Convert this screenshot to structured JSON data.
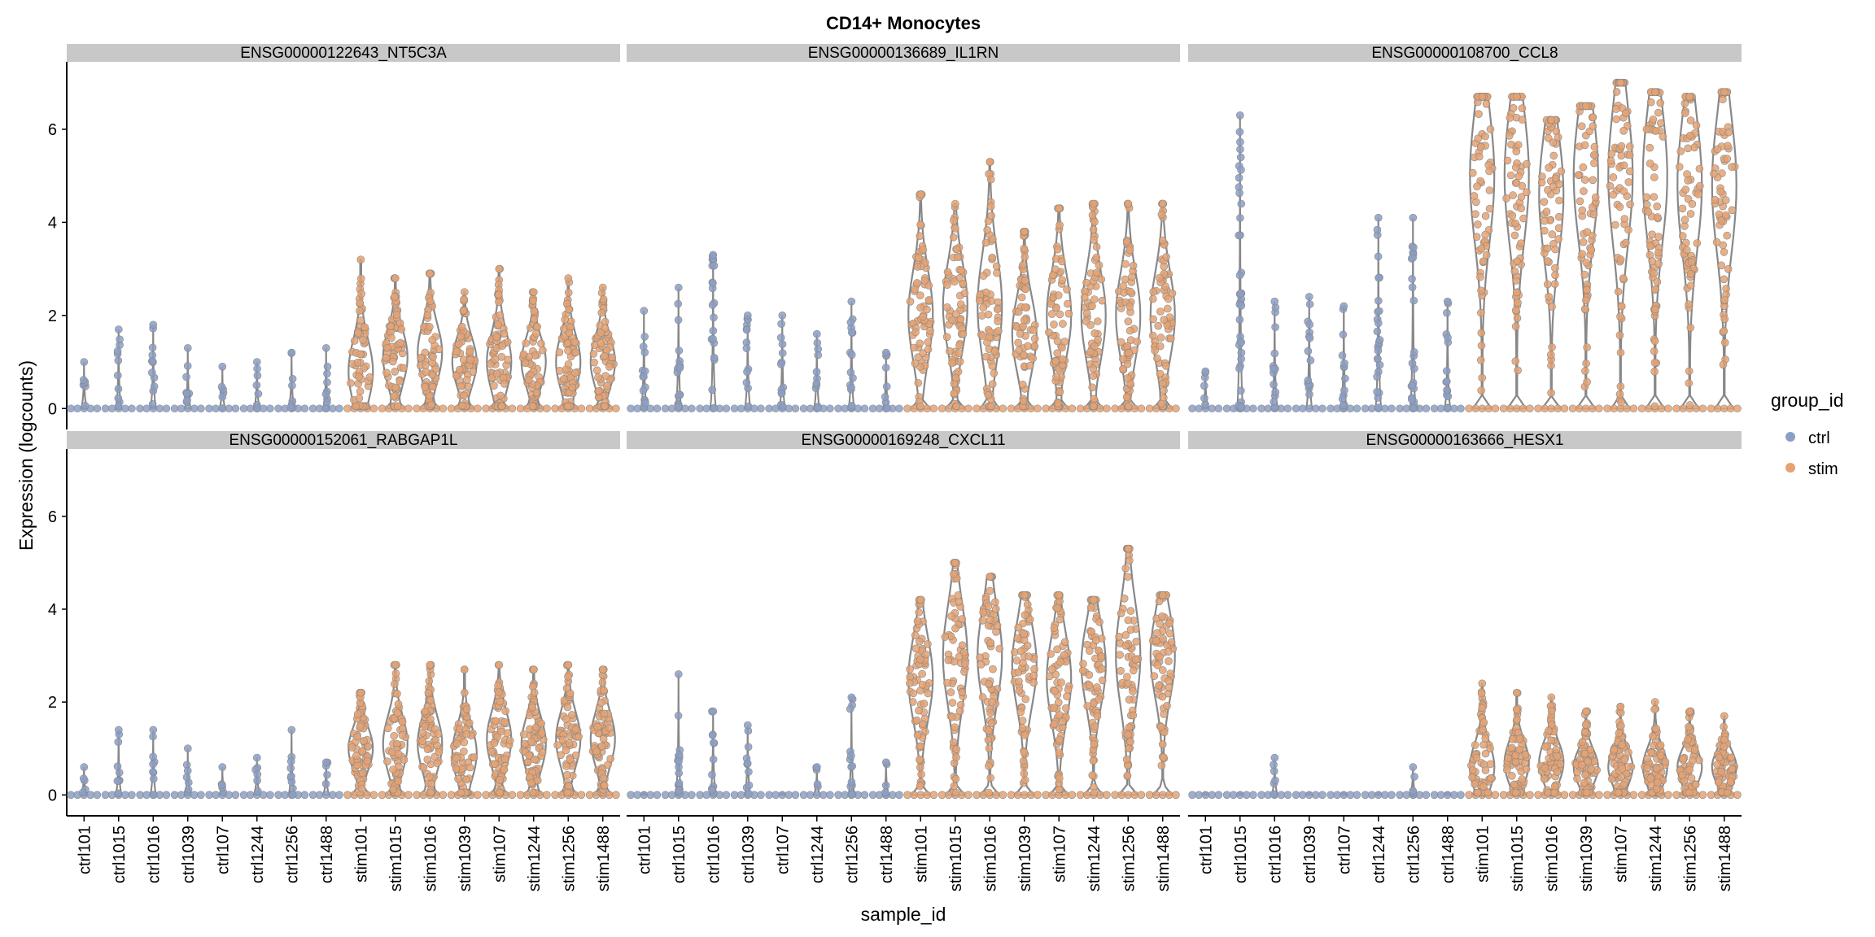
{
  "chart_data": {
    "type": "violin",
    "title": "CD14+ Monocytes",
    "xlabel": "sample_id",
    "ylabel": "Expression (logcounts)",
    "ylim": [
      -0.45,
      7.45
    ],
    "yticks": [
      0,
      2,
      4,
      6
    ],
    "legend": {
      "title": "group_id",
      "position": "right",
      "entries": [
        {
          "name": "ctrl",
          "color": "#8b9fc6"
        },
        {
          "name": "stim",
          "color": "#e5a272"
        }
      ]
    },
    "colors": {
      "ctrl": "#8b9fc6",
      "stim": "#e5a272",
      "violin": "#888888",
      "strip": "#c8c8c8"
    },
    "categories": [
      "ctrl101",
      "ctrl1015",
      "ctrl1016",
      "ctrl1039",
      "ctrl107",
      "ctrl1244",
      "ctrl1256",
      "ctrl1488",
      "stim101",
      "stim1015",
      "stim1016",
      "stim1039",
      "stim107",
      "stim1244",
      "stim1256",
      "stim1488"
    ],
    "panels": [
      {
        "name": "ENSG00000122643_NT5C3A",
        "max": [
          1.0,
          1.7,
          1.8,
          1.3,
          0.9,
          1.0,
          1.2,
          1.3,
          3.2,
          2.8,
          2.9,
          2.5,
          3.0,
          2.5,
          2.8,
          2.6
        ],
        "center": [
          0.4,
          0.6,
          0.6,
          0.4,
          0.4,
          0.5,
          0.5,
          0.5,
          0.8,
          1.1,
          1.2,
          1.0,
          1.0,
          1.0,
          1.0,
          1.0
        ]
      },
      {
        "name": "ENSG00000136689_IL1RN",
        "max": [
          2.1,
          2.6,
          3.3,
          2.0,
          2.0,
          1.6,
          2.3,
          1.2,
          4.6,
          4.4,
          5.3,
          3.8,
          4.3,
          4.4,
          4.4,
          4.4
        ],
        "center": [
          0.8,
          1.0,
          1.0,
          0.8,
          0.8,
          0.7,
          0.8,
          0.6,
          2.0,
          2.2,
          2.2,
          1.6,
          2.0,
          2.0,
          2.0,
          2.0
        ]
      },
      {
        "name": "ENSG00000108700_CCL8",
        "max": [
          0.8,
          6.3,
          2.3,
          2.4,
          2.2,
          4.1,
          4.1,
          2.3,
          6.7,
          6.7,
          6.2,
          6.5,
          7.0,
          6.8,
          6.7,
          6.8
        ],
        "center": [
          0.4,
          1.5,
          1.0,
          1.0,
          1.0,
          1.5,
          1.5,
          1.0,
          5.0,
          5.0,
          4.6,
          5.0,
          5.0,
          5.0,
          4.8,
          4.8
        ]
      },
      {
        "name": "ENSG00000152061_RABGAP1L",
        "max": [
          0.6,
          1.4,
          1.4,
          1.0,
          0.6,
          0.8,
          1.4,
          0.7,
          2.2,
          2.8,
          2.8,
          2.7,
          2.8,
          2.7,
          2.8,
          2.7
        ],
        "center": [
          0.3,
          0.7,
          0.7,
          0.5,
          0.3,
          0.4,
          0.6,
          0.4,
          1.0,
          1.1,
          1.1,
          0.9,
          1.2,
          1.1,
          1.2,
          1.2
        ]
      },
      {
        "name": "ENSG00000169248_CXCL11",
        "max": [
          0.0,
          2.6,
          1.8,
          1.5,
          0.0,
          0.6,
          2.1,
          0.7,
          4.2,
          5.0,
          4.7,
          4.3,
          4.3,
          4.2,
          5.3,
          4.3
        ],
        "center": [
          0.0,
          0.8,
          0.8,
          0.6,
          0.0,
          0.3,
          0.8,
          0.3,
          2.5,
          3.0,
          3.0,
          2.8,
          2.5,
          2.8,
          3.0,
          3.0
        ]
      },
      {
        "name": "ENSG00000163666_HESX1",
        "max": [
          0.0,
          0.0,
          0.8,
          0.0,
          0.0,
          0.0,
          0.6,
          0.0,
          2.4,
          2.2,
          2.1,
          1.8,
          1.9,
          2.0,
          1.8,
          1.7
        ],
        "center": [
          0.0,
          0.0,
          0.4,
          0.0,
          0.0,
          0.0,
          0.3,
          0.0,
          0.6,
          0.7,
          0.7,
          0.6,
          0.6,
          0.6,
          0.6,
          0.6
        ]
      }
    ]
  }
}
